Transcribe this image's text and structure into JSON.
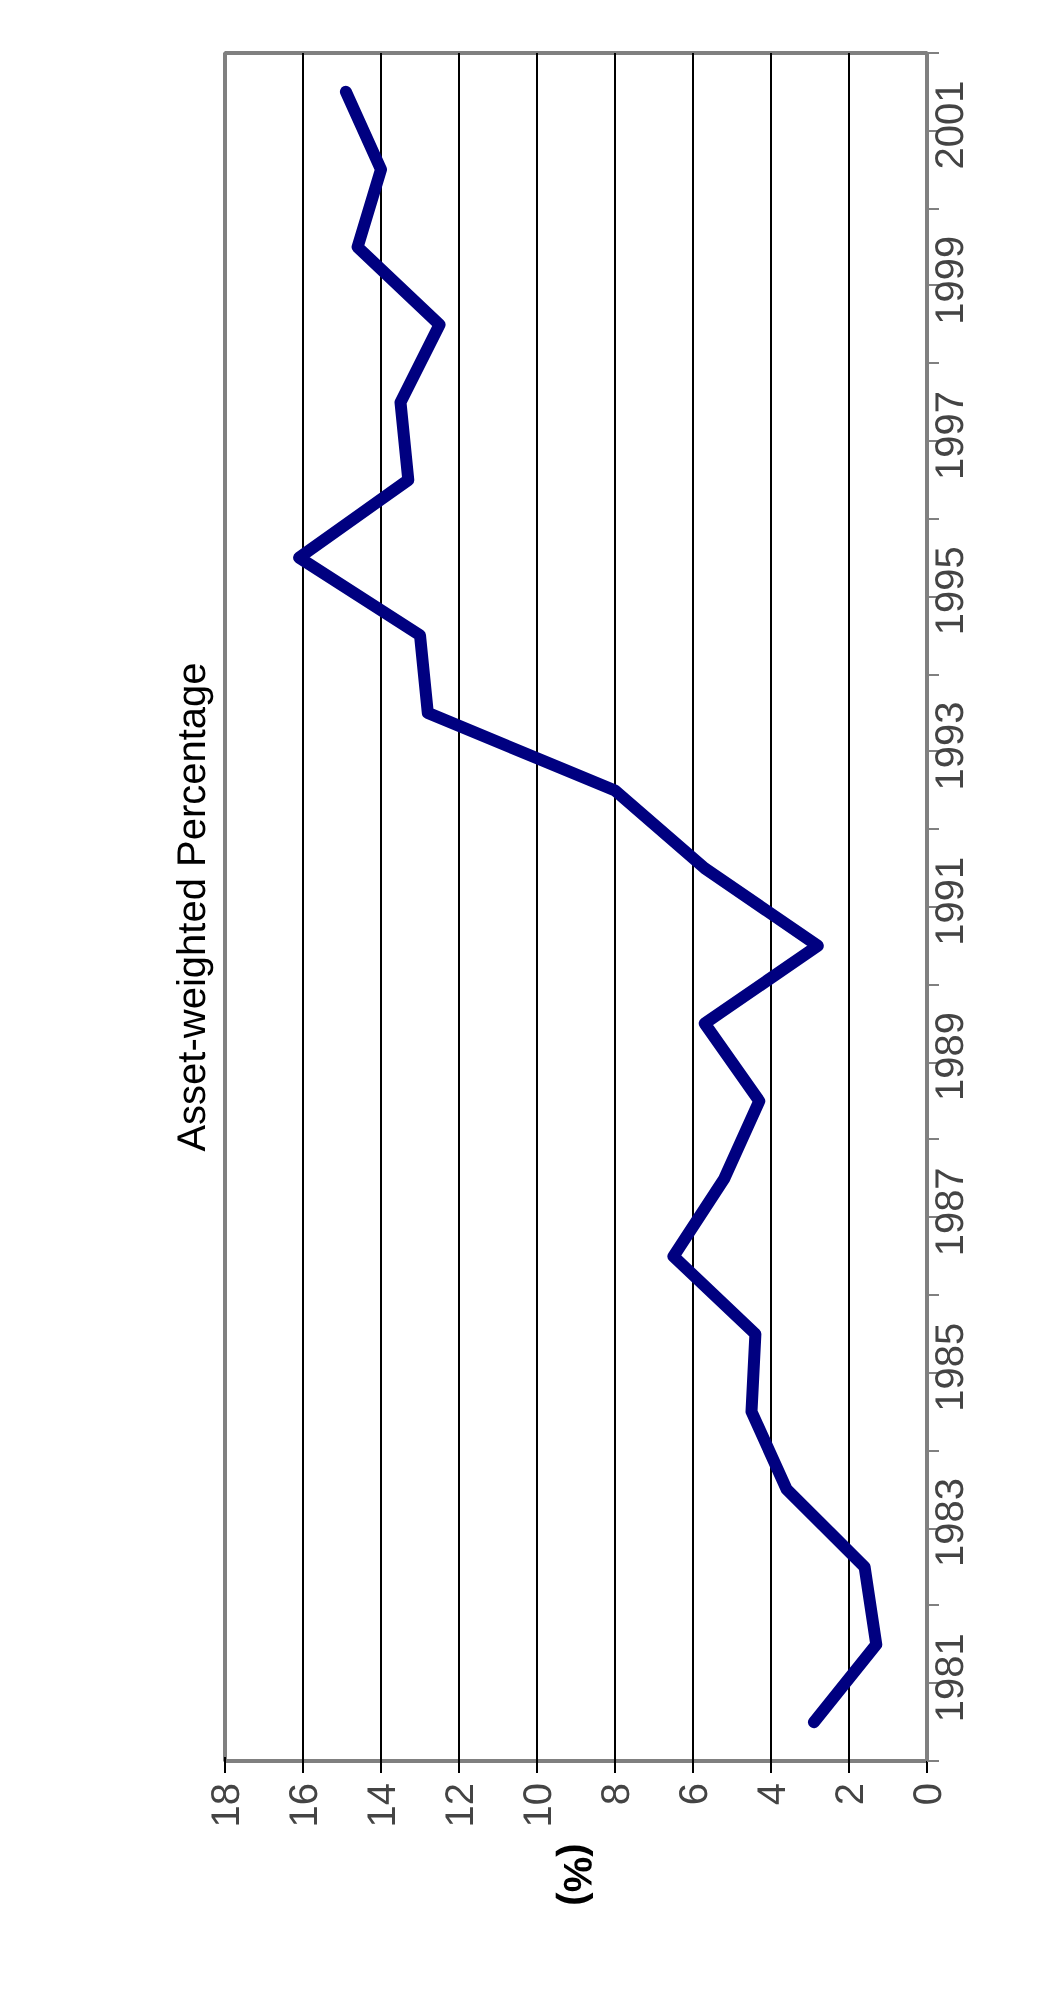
{
  "chart_data": {
    "type": "line",
    "orientation": "horizontal",
    "title": "Asset-weighted Percentage",
    "ylabel": "(%)",
    "categories": [
      null,
      "2001",
      null,
      "1999",
      null,
      "1997",
      null,
      "1995",
      null,
      "1993",
      null,
      "1991",
      null,
      "1989",
      null,
      "1987",
      null,
      "1985",
      null,
      "1983",
      null,
      "1981"
    ],
    "series": [
      {
        "color": "#000080",
        "values": [
          14.9,
          14.0,
          14.6,
          12.5,
          13.5,
          13.3,
          16.1,
          13.0,
          12.8,
          8.0,
          5.7,
          2.8,
          5.7,
          4.3,
          5.2,
          6.5,
          4.4,
          4.5,
          3.6,
          1.6,
          1.3,
          2.9
        ]
      }
    ],
    "xlim": [
      18,
      0
    ],
    "xticks": [
      0,
      2,
      4,
      6,
      8,
      10,
      12,
      14,
      16,
      18
    ],
    "grid": "x"
  }
}
